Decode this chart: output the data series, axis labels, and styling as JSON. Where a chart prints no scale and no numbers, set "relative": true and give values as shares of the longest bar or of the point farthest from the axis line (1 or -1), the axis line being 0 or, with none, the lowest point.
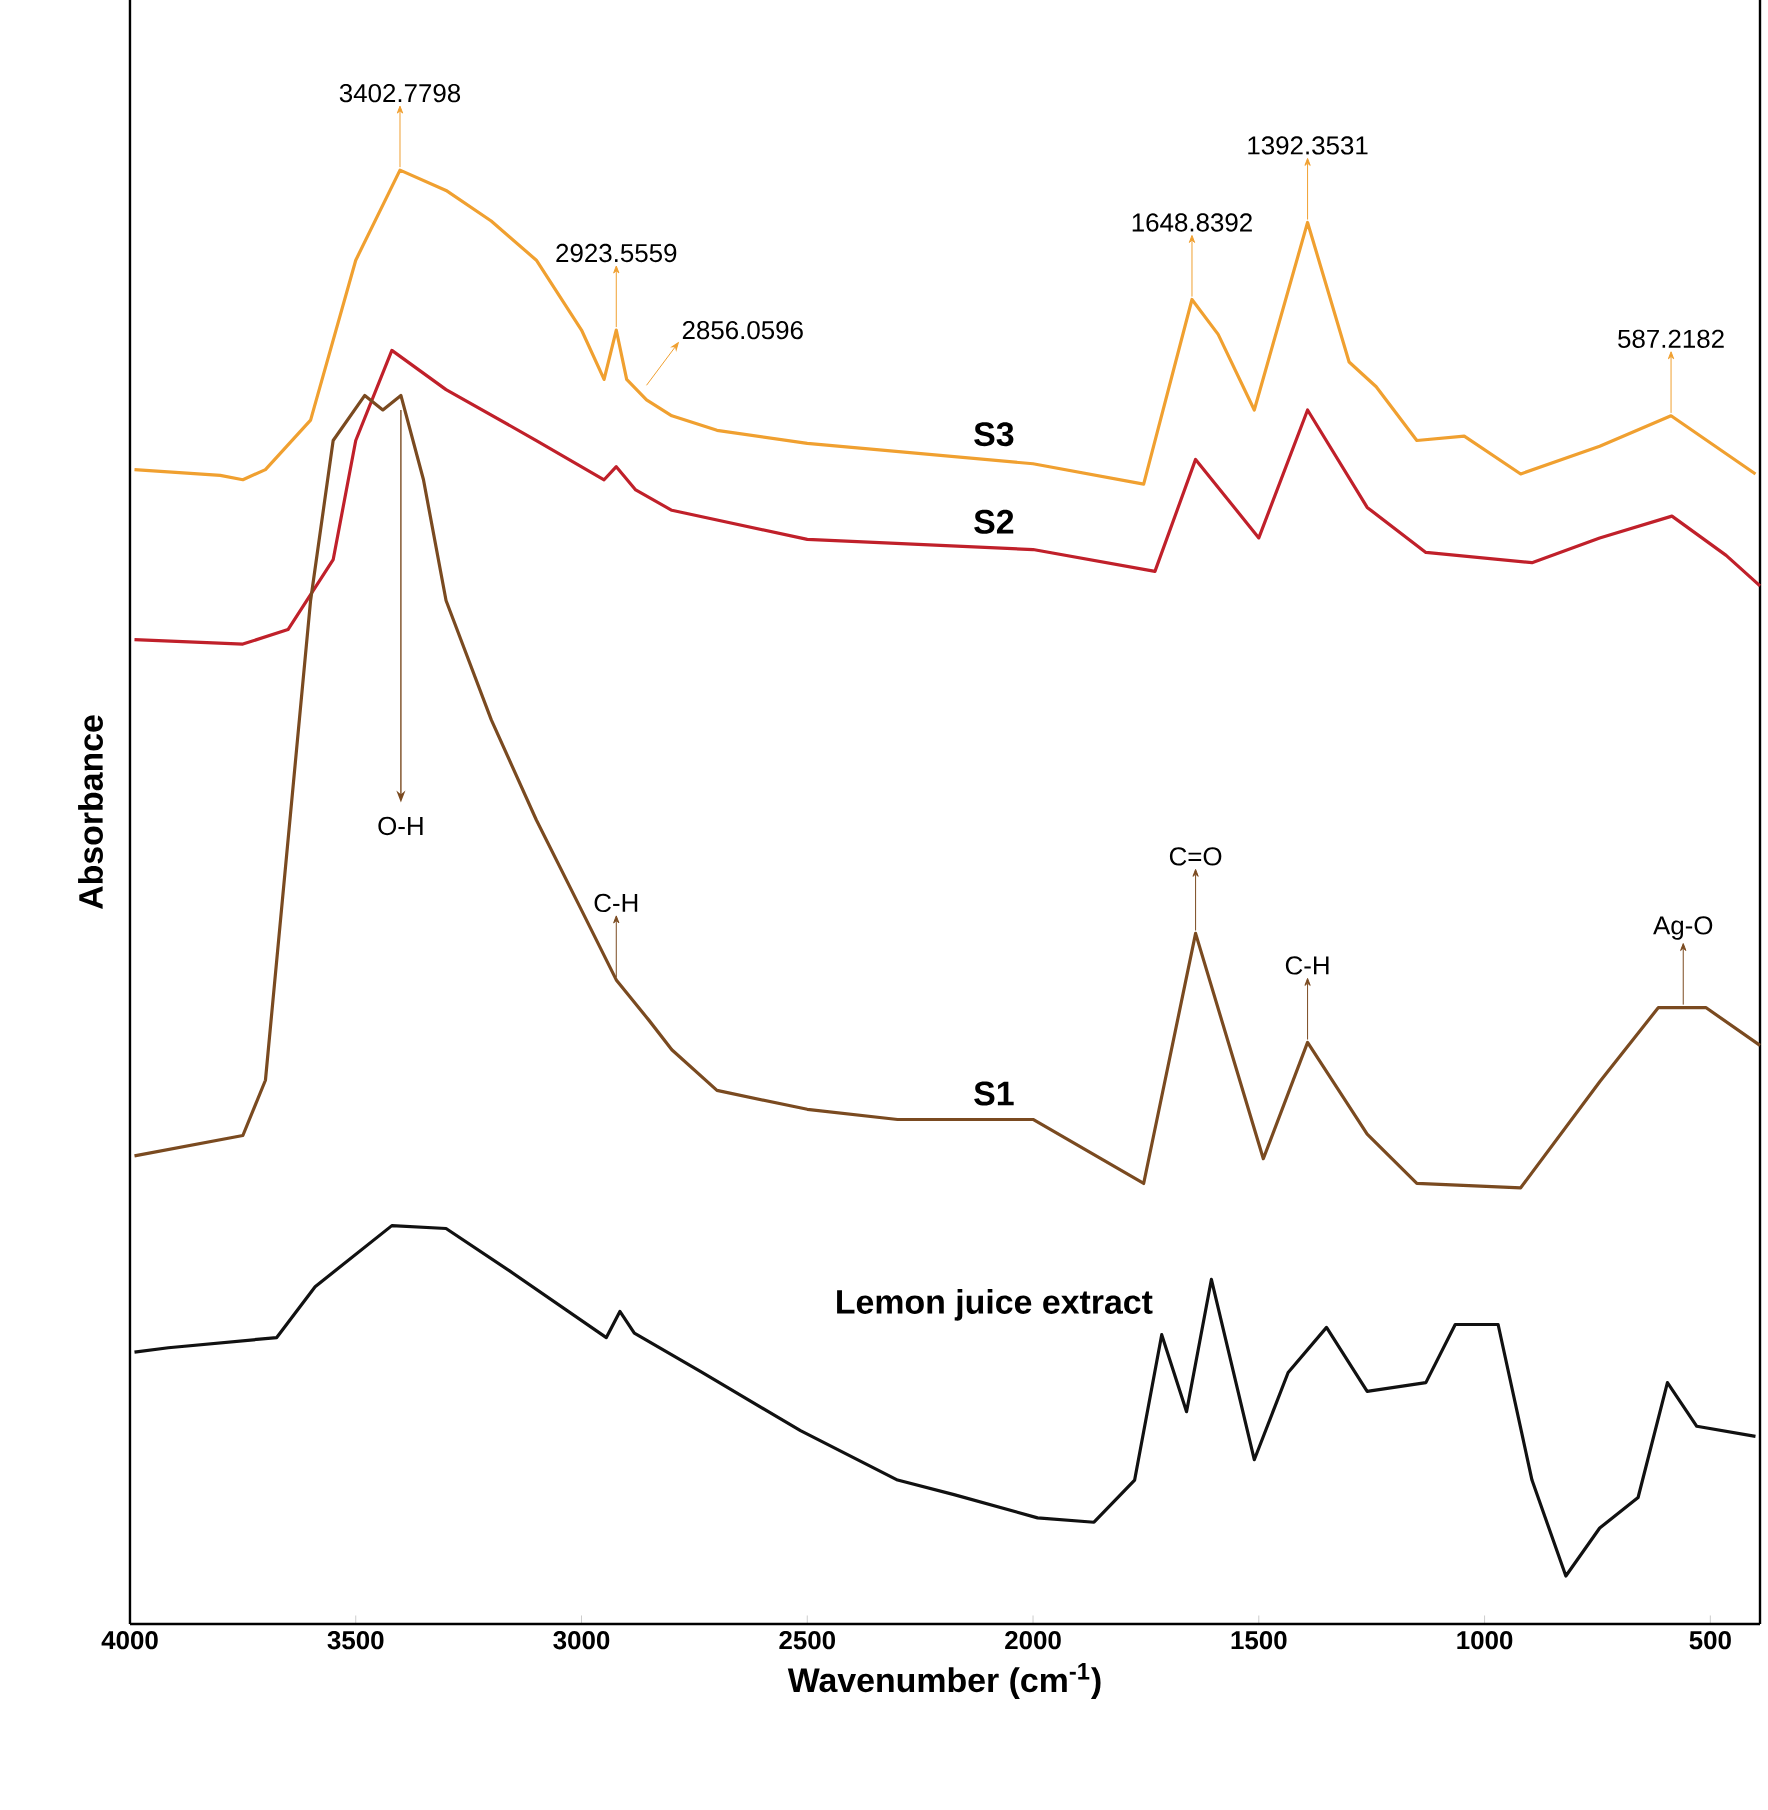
{
  "chart_data": {
    "type": "line",
    "relative": true,
    "xlabel": "Wavenumber (cm$^{-1}$)",
    "ylabel": "Absorbance",
    "xlim": [
      4000,
      390
    ],
    "xticks": [
      4000,
      3500,
      3000,
      2500,
      2000,
      1500,
      1000,
      500
    ],
    "grid": false,
    "line_style": "solid",
    "marker": "none",
    "series": [
      {
        "name": "S3",
        "color": "#f0a030",
        "x": [
          3990,
          3800,
          3750,
          3700,
          3600,
          3500,
          3402,
          3300,
          3200,
          3100,
          3000,
          2950,
          2923,
          2900,
          2856,
          2800,
          2700,
          2500,
          2000,
          1755,
          1648,
          1590,
          1510,
          1392,
          1300,
          1240,
          1150,
          1045,
          920,
          745,
          587,
          400
        ],
        "values": [
          0.794,
          0.79,
          0.787,
          0.794,
          0.828,
          0.938,
          1.0,
          0.986,
          0.965,
          0.938,
          0.89,
          0.856,
          0.89,
          0.856,
          0.842,
          0.831,
          0.821,
          0.812,
          0.798,
          0.784,
          0.911,
          0.887,
          0.835,
          0.964,
          0.868,
          0.851,
          0.814,
          0.817,
          0.791,
          0.81,
          0.831,
          0.791
        ]
      },
      {
        "name": "S2",
        "color": "#c0202a",
        "x": [
          3990,
          3750,
          3650,
          3550,
          3500,
          3420,
          3300,
          3100,
          2950,
          2923,
          2880,
          2800,
          2500,
          2000,
          1730,
          1640,
          1500,
          1392,
          1260,
          1130,
          895,
          745,
          585,
          465,
          390
        ],
        "values": [
          0.677,
          0.674,
          0.684,
          0.732,
          0.814,
          0.876,
          0.849,
          0.814,
          0.787,
          0.796,
          0.78,
          0.766,
          0.746,
          0.739,
          0.724,
          0.801,
          0.747,
          0.835,
          0.768,
          0.737,
          0.73,
          0.747,
          0.762,
          0.735,
          0.714
        ]
      },
      {
        "name": "S1",
        "color": "#7a4a20",
        "x": [
          3990,
          3750,
          3700,
          3650,
          3600,
          3550,
          3480,
          3440,
          3400,
          3350,
          3300,
          3200,
          3100,
          3000,
          2923,
          2850,
          2800,
          2700,
          2500,
          2300,
          2000,
          1755,
          1640,
          1490,
          1392,
          1260,
          1150,
          920,
          745,
          615,
          510,
          390
        ],
        "values": [
          0.322,
          0.336,
          0.374,
          0.539,
          0.704,
          0.814,
          0.845,
          0.835,
          0.845,
          0.787,
          0.704,
          0.622,
          0.553,
          0.491,
          0.443,
          0.415,
          0.395,
          0.367,
          0.354,
          0.347,
          0.347,
          0.303,
          0.475,
          0.32,
          0.4,
          0.337,
          0.303,
          0.3,
          0.373,
          0.424,
          0.424,
          0.398
        ]
      },
      {
        "name": "Lemon juice extract",
        "color": "#111111",
        "x": [
          3990,
          3915,
          3675,
          3590,
          3420,
          3300,
          3160,
          2945,
          2915,
          2883,
          2733,
          2515,
          2300,
          2175,
          1990,
          1865,
          1775,
          1715,
          1660,
          1605,
          1510,
          1435,
          1350,
          1260,
          1130,
          1065,
          970,
          895,
          820,
          745,
          660,
          595,
          530,
          400
        ],
        "values": [
          0.187,
          0.19,
          0.197,
          0.232,
          0.274,
          0.272,
          0.243,
          0.197,
          0.215,
          0.2,
          0.173,
          0.133,
          0.099,
          0.089,
          0.073,
          0.07,
          0.099,
          0.199,
          0.146,
          0.237,
          0.113,
          0.173,
          0.204,
          0.16,
          0.166,
          0.206,
          0.206,
          0.099,
          0.033,
          0.066,
          0.087,
          0.166,
          0.136,
          0.129
        ]
      }
    ],
    "annotations": [
      {
        "text": "3402.7798",
        "x": 3402,
        "y": 1.0
      },
      {
        "text": "2923.5559",
        "x": 2923,
        "y": 0.89
      },
      {
        "text": "2856.0596",
        "x": 2856,
        "y": 0.842
      },
      {
        "text": "1648.8392",
        "x": 1648,
        "y": 0.911
      },
      {
        "text": "1392.3531",
        "x": 1392,
        "y": 0.964
      },
      {
        "text": "587.2182",
        "x": 587,
        "y": 0.831
      },
      {
        "text": "O-H",
        "x": 3400,
        "y": 0.845
      },
      {
        "text": "C-H",
        "x": 2923,
        "y": 0.443
      },
      {
        "text": "C=O",
        "x": 1640,
        "y": 0.475
      },
      {
        "text": "C-H",
        "x": 1392,
        "y": 0.4
      },
      {
        "text": "Ag-O",
        "x": 560,
        "y": 0.424
      }
    ]
  }
}
